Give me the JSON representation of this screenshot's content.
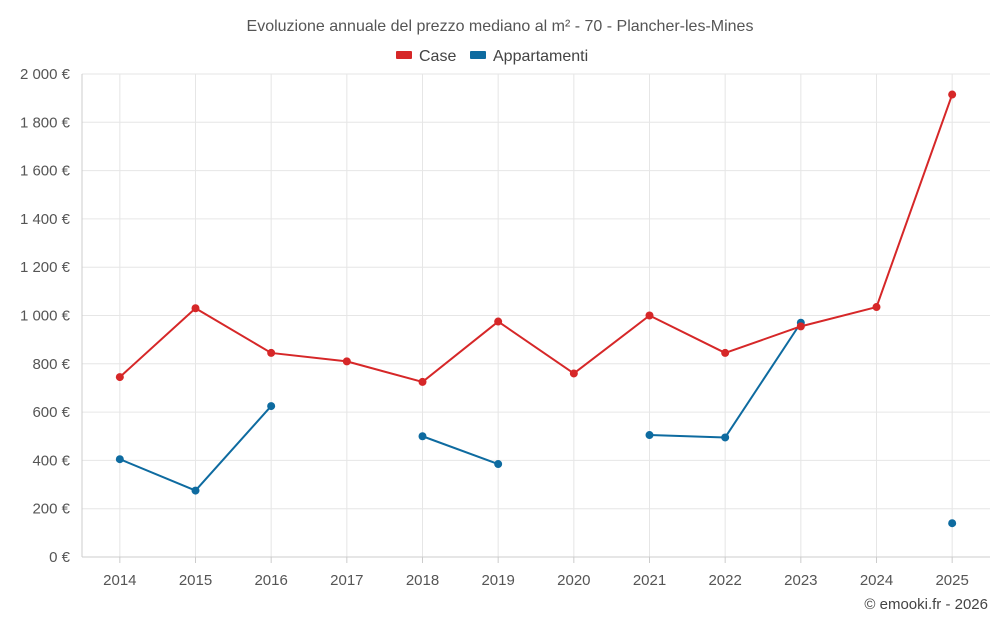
{
  "chart_data": {
    "type": "line",
    "title": "Evoluzione annuale del prezzo mediano al m² - 70 - Plancher-les-Mines",
    "xlabel": "",
    "ylabel": "",
    "categories": [
      "2014",
      "2015",
      "2016",
      "2017",
      "2018",
      "2019",
      "2020",
      "2021",
      "2022",
      "2023",
      "2024",
      "2025"
    ],
    "ylim": [
      0,
      2000
    ],
    "yticks": [
      0,
      200,
      400,
      600,
      800,
      1000,
      1200,
      1400,
      1600,
      1800,
      2000
    ],
    "ytick_labels": [
      "0 €",
      "200 €",
      "400 €",
      "600 €",
      "800 €",
      "1 000 €",
      "1 200 €",
      "1 400 €",
      "1 600 €",
      "1 800 €",
      "2 000 €"
    ],
    "grid": true,
    "legend_position": "top-center",
    "series": [
      {
        "name": "Case",
        "color": "#d62728",
        "values": [
          745,
          1030,
          845,
          810,
          725,
          975,
          760,
          1000,
          845,
          955,
          1035,
          1915
        ]
      },
      {
        "name": "Appartamenti",
        "color": "#0e6ba0",
        "values": [
          405,
          275,
          625,
          null,
          500,
          385,
          null,
          505,
          495,
          970,
          null,
          140
        ]
      }
    ]
  },
  "credit": "© emooki.fr - 2026"
}
